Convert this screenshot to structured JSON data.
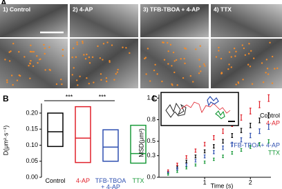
{
  "panel_a": {
    "label": "A",
    "images": [
      "1) Control",
      "2) 4-AP",
      "3) TFB-TBOA + 4-AP",
      "4) TTX"
    ]
  },
  "chart_data": [
    {
      "type": "range",
      "panel": "B",
      "y_label": "D(μm²·s⁻¹)",
      "categories": [
        "Control",
        "4-AP",
        "TFB-TBOA\n+ 4-AP",
        "TTX"
      ],
      "colors": [
        "#000000",
        "#e0202a",
        "#2e4fb0",
        "#1a9a3a"
      ],
      "low": [
        0.096,
        0.046,
        0.05,
        0.044
      ],
      "median": [
        0.142,
        0.122,
        0.094,
        0.074
      ],
      "high": [
        0.2,
        0.22,
        0.148,
        0.162
      ],
      "ylim": [
        0,
        0.23
      ],
      "yticks": [
        {
          "value": 0,
          "label": "0.00"
        },
        0.05,
        {
          "value": 0.1,
          "label": "0.10"
        },
        0.15,
        {
          "value": 0.2,
          "label": "0.20"
        }
      ],
      "annotations": [
        "***",
        "***"
      ]
    },
    {
      "type": "scatter",
      "panel": "C",
      "y_label": "MSD(μm²)",
      "x_label": "Time (s)",
      "x": [
        0.2,
        0.4,
        0.6,
        0.8,
        1.0,
        1.2,
        1.4,
        1.6,
        1.8,
        2.0,
        2.2,
        2.4
      ],
      "series": [
        {
          "name": "Control",
          "color": "#000000",
          "values": [
            0.07,
            0.14,
            0.22,
            0.29,
            0.36,
            0.43,
            0.5,
            0.58,
            0.65,
            0.72,
            0.79,
            0.86
          ],
          "errors": [
            0.005,
            0.008,
            0.01,
            0.012,
            0.014,
            0.016,
            0.018,
            0.02,
            0.022,
            0.024,
            0.026,
            0.028
          ]
        },
        {
          "name": "4-AP",
          "color": "#e0202a",
          "values": [
            0.09,
            0.18,
            0.28,
            0.37,
            0.46,
            0.55,
            0.64,
            0.74,
            0.83,
            0.92,
            1.01,
            1.1
          ],
          "errors": [
            0.006,
            0.009,
            0.012,
            0.015,
            0.018,
            0.021,
            0.024,
            0.027,
            0.03,
            0.033,
            0.036,
            0.039
          ]
        },
        {
          "name": "TFB-TBOA+ 4-AP",
          "color": "#2e4fb0",
          "values": [
            0.06,
            0.12,
            0.17,
            0.23,
            0.29,
            0.35,
            0.41,
            0.46,
            0.52,
            0.58,
            0.64,
            0.7
          ],
          "errors": [
            0.005,
            0.007,
            0.009,
            0.011,
            0.013,
            0.015,
            0.017,
            0.019,
            0.021,
            0.023,
            0.025,
            0.027
          ]
        },
        {
          "name": "TTX",
          "color": "#1a9a3a",
          "values": [
            0.04,
            0.08,
            0.13,
            0.17,
            0.21,
            0.25,
            0.29,
            0.34,
            0.38,
            0.42,
            0.46,
            0.5
          ],
          "errors": [
            0.004,
            0.005,
            0.006,
            0.007,
            0.008,
            0.009,
            0.01,
            0.011,
            0.012,
            0.013,
            0.014,
            0.015
          ]
        }
      ],
      "xlim": [
        0,
        2.45
      ],
      "xticks": [
        1,
        2
      ],
      "ylim": [
        0,
        1.15
      ],
      "yticks": [
        {
          "value": 0,
          "label": "0.0"
        },
        0.3,
        0.5,
        0.8,
        1.1
      ]
    }
  ]
}
